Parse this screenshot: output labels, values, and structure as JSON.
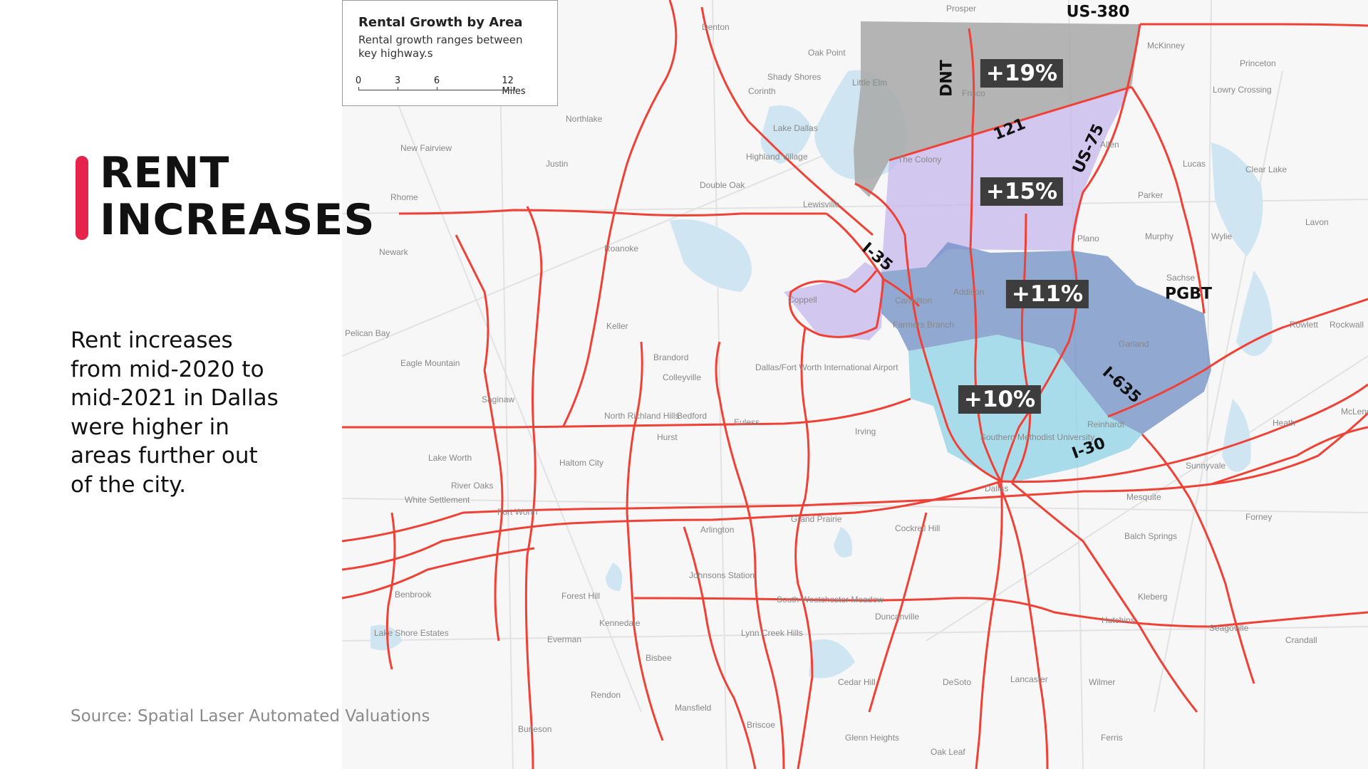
{
  "header": {
    "title_line1": "RENT",
    "title_line2": "INCREASES"
  },
  "description": "Rent increases from mid-2020 to mid-2021 in Dallas were higher in areas further out of the city.",
  "source": "Source: Spatial Laser Automated Valuations",
  "legend": {
    "title": "Rental Growth by Area",
    "subtitle": "Rental growth ranges between key highway.s",
    "scale_ticks": [
      "0",
      "3",
      "6",
      "12 Miles"
    ]
  },
  "zones": [
    {
      "label": "+19%",
      "color": "#a8a8a8"
    },
    {
      "label": "+15%",
      "color": "#c4b7ec"
    },
    {
      "label": "+11%",
      "color": "#6f8ec4"
    },
    {
      "label": "+10%",
      "color": "#8fd3e6"
    }
  ],
  "highways": {
    "us380": "US-380",
    "dnt": "DNT",
    "h121": "121",
    "us75": "US-75",
    "i35": "I-35",
    "pgbt": "PGBT",
    "i635": "I-635",
    "i30": "I-30"
  },
  "places": [
    "Denton",
    "Prosper",
    "McKinney",
    "Princeton",
    "Frisco",
    "Little Elm",
    "Oak Point",
    "Shady Shores",
    "Corinth",
    "Lowry Crossing",
    "Northlake",
    "Lake Dallas",
    "Highland Village",
    "The Colony",
    "New Fairview",
    "Justin",
    "Allen",
    "Lucas",
    "Double Oak",
    "Lewisville",
    "Parker",
    "Rhome",
    "Plano",
    "Murphy",
    "Wylie",
    "Newark",
    "Roanoke",
    "Sachse",
    "Coppell",
    "Carrollton",
    "Addison",
    "Keller",
    "Farmers Branch",
    "Garland",
    "Rowlett",
    "Rockwall",
    "Colleyville",
    "Dallas/Fort Worth International Airport",
    "Eagle Mountain",
    "Saginaw",
    "North Richland Hills",
    "Bedford",
    "Euless",
    "Irving",
    "Hurst",
    "Haltom City",
    "Lake Worth",
    "River Oaks",
    "White Settlement",
    "Fort Worth",
    "Arlington",
    "Grand Prairie",
    "Cockrell Hill",
    "Dallas",
    "Mesquite",
    "Sunnyvale",
    "Balch Springs",
    "Forney",
    "Benbrook",
    "Forest Hill",
    "Kennedale",
    "Everman",
    "Duncanville",
    "Hutchins",
    "Lancaster",
    "Wilmer",
    "DeSoto",
    "Cedar Hill",
    "Mansfield",
    "Rendon",
    "Burleson",
    "Oak Leaf",
    "Reinhardt",
    "Seagoville",
    "Crandall",
    "Heath",
    "McLendon-Chisholm",
    "Clear Lake",
    "Lavon",
    "Kleberg",
    "Lake Shore Estates",
    "Southern Methodist University",
    "Briscoe",
    "Ferris",
    "Glenn Heights",
    "Johnsons Station",
    "South Westchester Meadow",
    "Lynn Creek Hills",
    "Bisbee",
    "Pelican Bay",
    "Brandord"
  ],
  "colors": {
    "accent": "#e6234a",
    "roads": "#ef4135",
    "water": "#cfe6f2",
    "land": "#f7f7f7"
  }
}
